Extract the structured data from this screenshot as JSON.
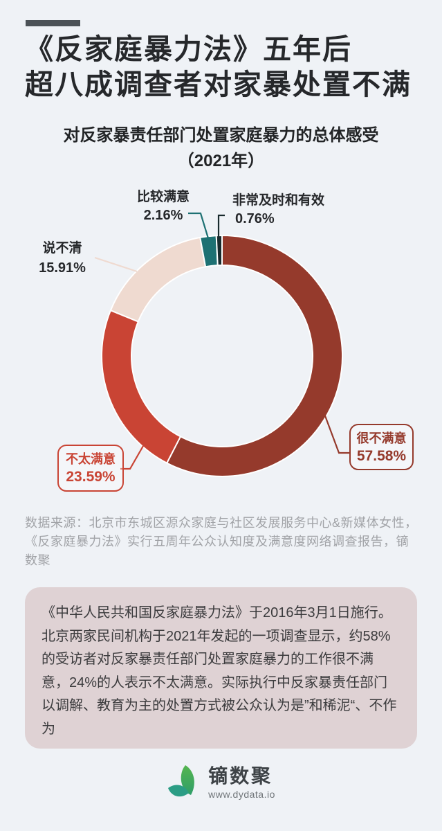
{
  "page_bg": "#EFF2F6",
  "header": {
    "title_line1": "《反家庭暴力法》五年后",
    "title_line2": "超八成调查者对家暴处置不满",
    "subtitle_line1": "对反家暴责任部门处置家庭暴力的总体感受",
    "subtitle_line2": "（2021年）"
  },
  "chart_data": {
    "type": "pie",
    "style": "donut",
    "title": "对反家暴责任部门处置家庭暴力的总体感受（2021年）",
    "year": "2021",
    "unit": "%",
    "start_angle_deg": 0,
    "direction": "clockwise",
    "segments": [
      {
        "label": "很不满意",
        "value": 57.58,
        "percent_label": "57.58%",
        "color": "#953A2C"
      },
      {
        "label": "不太满意",
        "value": 23.59,
        "percent_label": "23.59%",
        "color": "#C94434"
      },
      {
        "label": "说不清",
        "value": 15.91,
        "percent_label": "15.91%",
        "color": "#EFDAD0"
      },
      {
        "label": "比较满意",
        "value": 2.16,
        "percent_label": "2.16%",
        "color": "#1E7173"
      },
      {
        "label": "非常及时和有效",
        "value": 0.76,
        "percent_label": "0.76%",
        "color": "#182A2D"
      }
    ]
  },
  "source": {
    "text": "数据来源：北京市东城区源众家庭与社区发展服务中心&新媒体女性，《反家庭暴力法》实行五周年公众认知度及满意度网络调查报告，镝数聚"
  },
  "summary": {
    "text": "《中华人民共和国反家庭暴力法》于2016年3月1日施行。北京两家民间机构于2021年发起的一项调查显示，约58%的受访者对反家暴责任部门处置家庭暴力的工作很不满意，24%的人表示不太满意。实际执行中反家暴责任部门以调解、教育为主的处置方式被公众认为是”和稀泥“、不作为"
  },
  "footer": {
    "brand_name": "镝数聚",
    "brand_url": "www.dydata.io"
  }
}
